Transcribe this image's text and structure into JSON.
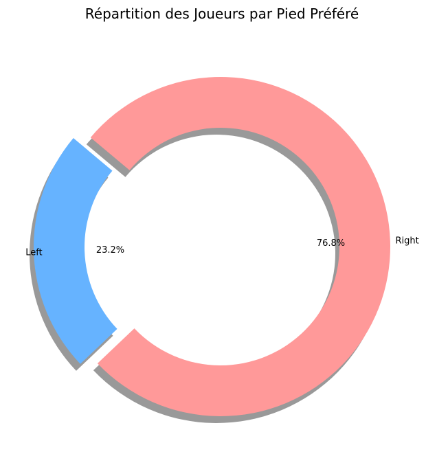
{
  "chart_data": {
    "type": "pie",
    "style": "donut",
    "title": "Répartition des Joueurs par Pied Préféré",
    "shadow": true,
    "categories": [
      "Left",
      "Right"
    ],
    "values": [
      23.2,
      76.8
    ],
    "value_labels": [
      "23.2%",
      "76.8%"
    ],
    "colors": [
      "#66b3ff",
      "#ff9999"
    ],
    "exploded": [
      "Left"
    ],
    "legend": "none"
  }
}
